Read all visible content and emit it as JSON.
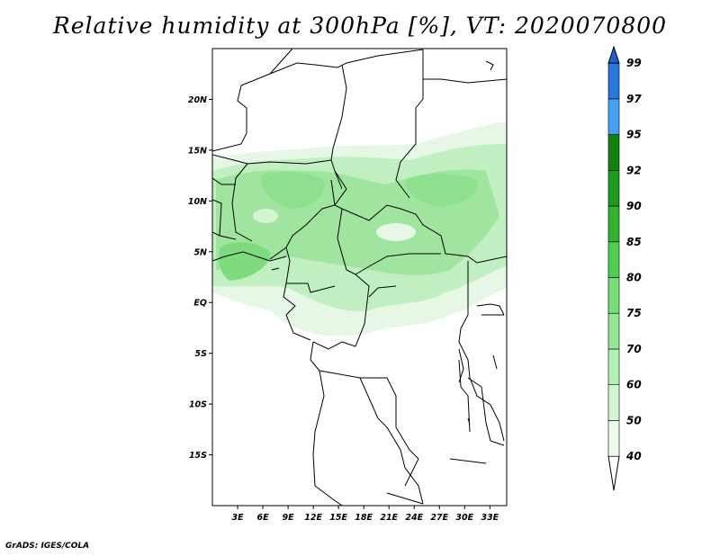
{
  "title": "Relative humidity at 300hPa [%], VT: 2020070800",
  "credit": "GrADS: IGES/COLA",
  "map": {
    "lon_range": [
      0,
      35
    ],
    "lat_range": [
      -20,
      25
    ],
    "lat_labels": [
      {
        "lat": 20,
        "text": "20N"
      },
      {
        "lat": 15,
        "text": "15N"
      },
      {
        "lat": 10,
        "text": "10N"
      },
      {
        "lat": 5,
        "text": "5N"
      },
      {
        "lat": 0,
        "text": "EQ"
      },
      {
        "lat": -5,
        "text": "5S"
      },
      {
        "lat": -10,
        "text": "10S"
      },
      {
        "lat": -15,
        "text": "15S"
      }
    ],
    "lon_labels": [
      {
        "lon": 3,
        "text": "3E"
      },
      {
        "lon": 6,
        "text": "6E"
      },
      {
        "lon": 9,
        "text": "9E"
      },
      {
        "lon": 12,
        "text": "12E"
      },
      {
        "lon": 15,
        "text": "15E"
      },
      {
        "lon": 18,
        "text": "18E"
      },
      {
        "lon": 21,
        "text": "21E"
      },
      {
        "lon": 24,
        "text": "24E"
      },
      {
        "lon": 27,
        "text": "27E"
      },
      {
        "lon": 30,
        "text": "30E"
      },
      {
        "lon": 33,
        "text": "33E"
      }
    ]
  },
  "colorbar": {
    "levels": [
      {
        "label": "40",
        "color": "#ffffff"
      },
      {
        "label": "50",
        "color": "#ebfaeb"
      },
      {
        "label": "60",
        "color": "#d2f5d2"
      },
      {
        "label": "70",
        "color": "#b4f0b4"
      },
      {
        "label": "75",
        "color": "#96e696"
      },
      {
        "label": "80",
        "color": "#78dc78"
      },
      {
        "label": "85",
        "color": "#50cd50"
      },
      {
        "label": "90",
        "color": "#32b432"
      },
      {
        "label": "92",
        "color": "#1e9b1e"
      },
      {
        "label": "95",
        "color": "#0f820f"
      },
      {
        "label": "97",
        "color": "#46a0f0"
      },
      {
        "label": "99",
        "color": "#2878dc"
      }
    ],
    "top_color": "#1e64c8"
  }
}
